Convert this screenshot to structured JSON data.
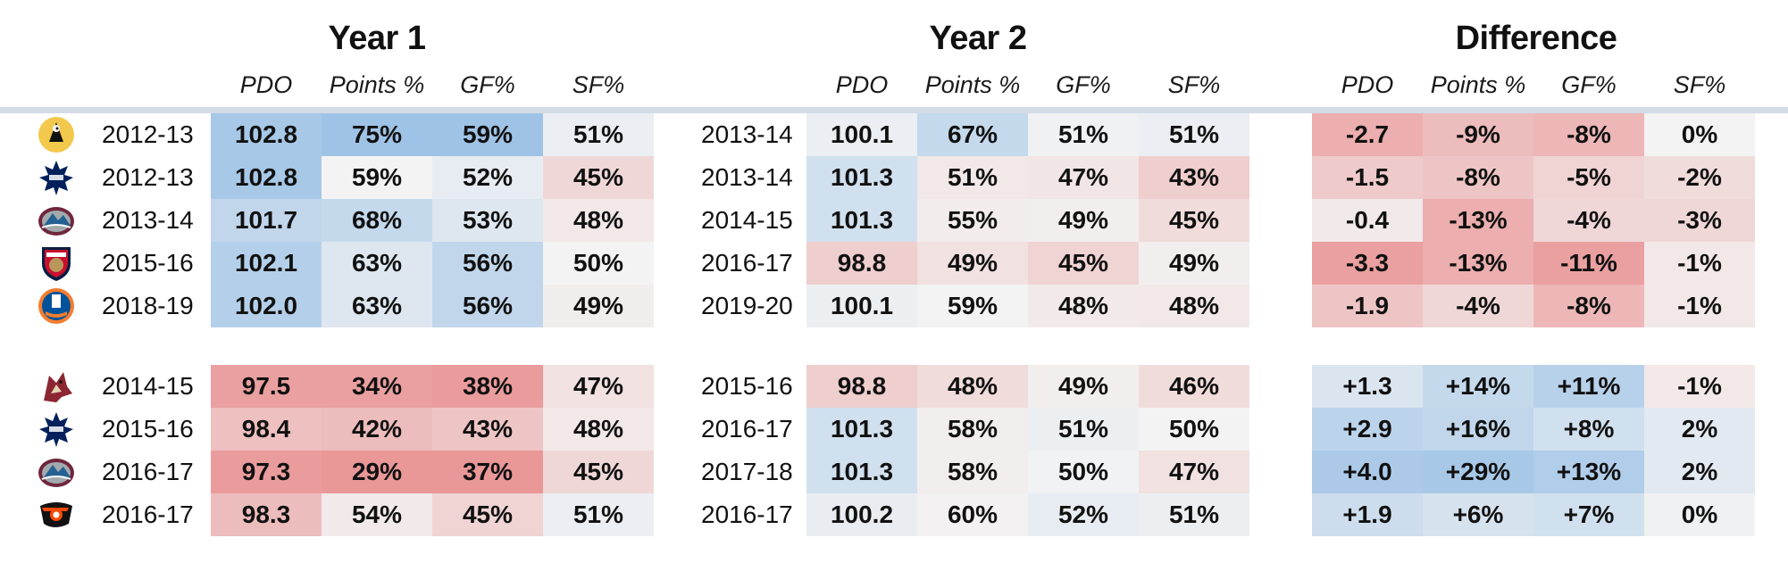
{
  "headers": {
    "year1": "Year 1",
    "year2": "Year 2",
    "difference": "Difference",
    "columns": [
      "PDO",
      "Points %",
      "GF%",
      "SF%"
    ]
  },
  "colors": {
    "positive": "#9fc3e6",
    "negative": "#e99797",
    "neutral": "#f3f3f3",
    "divider": "#d3dbe7"
  },
  "chart_data": {
    "type": "table",
    "groups": [
      "Year 1",
      "Year 2",
      "Difference"
    ],
    "columns": [
      "PDO",
      "Points %",
      "GF%",
      "SF%"
    ],
    "rows": [
      {
        "team_icon": "penguins-logo-icon",
        "y1_season": "2012-13",
        "y1": [
          "102.8",
          "75%",
          "59%",
          "51%"
        ],
        "y2_season": "2013-14",
        "y2": [
          "100.1",
          "67%",
          "51%",
          "51%"
        ],
        "diff": [
          "-2.7",
          "-9%",
          "-8%",
          "0%"
        ],
        "y1_t": [
          0.9,
          1.0,
          1.0,
          0.1
        ],
        "y2_t": [
          0.1,
          0.55,
          0.05,
          0.1
        ],
        "diff_t": [
          -0.75,
          -0.6,
          -0.65,
          0.0
        ]
      },
      {
        "team_icon": "maple-leafs-logo-icon",
        "y1_season": "2012-13",
        "y1": [
          "102.8",
          "59%",
          "52%",
          "45%"
        ],
        "y2_season": "2013-14",
        "y2": [
          "101.3",
          "51%",
          "47%",
          "43%"
        ],
        "diff": [
          "-1.5",
          "-8%",
          "-5%",
          "-2%"
        ],
        "y1_t": [
          0.9,
          0.0,
          0.15,
          -0.3
        ],
        "y2_t": [
          0.4,
          -0.12,
          -0.15,
          -0.4
        ],
        "diff_t": [
          -0.45,
          -0.5,
          -0.35,
          -0.25
        ]
      },
      {
        "team_icon": "avalanche-logo-icon",
        "y1_season": "2013-14",
        "y1": [
          "101.7",
          "68%",
          "53%",
          "48%"
        ],
        "y2_season": "2014-15",
        "y2": [
          "101.3",
          "55%",
          "49%",
          "45%"
        ],
        "diff": [
          "-0.4",
          "-13%",
          "-4%",
          "-3%"
        ],
        "y1_t": [
          0.6,
          0.55,
          0.25,
          -0.12
        ],
        "y2_t": [
          0.4,
          -0.08,
          -0.05,
          -0.25
        ],
        "diff_t": [
          -0.1,
          -0.75,
          -0.3,
          -0.3
        ]
      },
      {
        "team_icon": "panthers-logo-icon",
        "y1_season": "2015-16",
        "y1": [
          "102.1",
          "63%",
          "56%",
          "50%"
        ],
        "y2_season": "2016-17",
        "y2": [
          "98.8",
          "49%",
          "45%",
          "49%"
        ],
        "diff": [
          "-3.3",
          "-13%",
          "-11%",
          "-1%"
        ],
        "y1_t": [
          0.75,
          0.25,
          0.6,
          0.0
        ],
        "y2_t": [
          -0.4,
          -0.2,
          -0.35,
          -0.05
        ],
        "diff_t": [
          -0.9,
          -0.75,
          -0.9,
          -0.12
        ]
      },
      {
        "team_icon": "islanders-logo-icon",
        "y1_season": "2018-19",
        "y1": [
          "102.0",
          "63%",
          "56%",
          "49%"
        ],
        "y2_season": "2019-20",
        "y2": [
          "100.1",
          "59%",
          "48%",
          "48%"
        ],
        "diff": [
          "-1.9",
          "-4%",
          "-8%",
          "-1%"
        ],
        "y1_t": [
          0.75,
          0.25,
          0.6,
          -0.06
        ],
        "y2_t": [
          0.08,
          0.0,
          -0.1,
          -0.12
        ],
        "diff_t": [
          -0.5,
          -0.3,
          -0.65,
          -0.12
        ]
      },
      {
        "team_icon": "coyotes-logo-icon",
        "y1_season": "2014-15",
        "y1": [
          "97.5",
          "34%",
          "38%",
          "47%"
        ],
        "y2_season": "2015-16",
        "y2": [
          "98.8",
          "48%",
          "49%",
          "46%"
        ],
        "diff": [
          "+1.3",
          "+14%",
          "+11%",
          "-1%"
        ],
        "y1_t": [
          -0.9,
          -0.9,
          -0.95,
          -0.2
        ],
        "y2_t": [
          -0.4,
          -0.25,
          -0.05,
          -0.25
        ],
        "diff_t": [
          0.3,
          0.55,
          0.7,
          -0.12
        ]
      },
      {
        "team_icon": "maple-leafs-logo-icon",
        "y1_season": "2015-16",
        "y1": [
          "98.4",
          "42%",
          "43%",
          "48%"
        ],
        "y2_season": "2016-17",
        "y2": [
          "101.3",
          "58%",
          "51%",
          "50%"
        ],
        "diff": [
          "+2.9",
          "+16%",
          "+8%",
          "2%"
        ],
        "y1_t": [
          -0.55,
          -0.6,
          -0.5,
          -0.12
        ],
        "y2_t": [
          0.4,
          -0.05,
          0.08,
          0.0
        ],
        "diff_t": [
          0.65,
          0.6,
          0.4,
          0.2
        ]
      },
      {
        "team_icon": "avalanche-logo-icon",
        "y1_season": "2016-17",
        "y1": [
          "97.3",
          "29%",
          "37%",
          "45%"
        ],
        "y2_season": "2017-18",
        "y2": [
          "101.3",
          "58%",
          "50%",
          "47%"
        ],
        "diff": [
          "+4.0",
          "+29%",
          "+13%",
          "2%"
        ],
        "y1_t": [
          -0.95,
          -1.0,
          -1.0,
          -0.3
        ],
        "y2_t": [
          0.4,
          -0.05,
          0.03,
          -0.2
        ],
        "diff_t": [
          0.85,
          0.9,
          0.8,
          0.2
        ]
      },
      {
        "team_icon": "flyers-logo-icon",
        "y1_season": "2016-17",
        "y1": [
          "98.3",
          "54%",
          "45%",
          "51%"
        ],
        "y2_season": "2016-17",
        "y2": [
          "100.2",
          "60%",
          "52%",
          "51%"
        ],
        "diff": [
          "+1.9",
          "+6%",
          "+7%",
          "0%"
        ],
        "y1_t": [
          -0.6,
          -0.1,
          -0.35,
          0.1
        ],
        "y2_t": [
          0.12,
          -0.02,
          0.15,
          0.08
        ],
        "diff_t": [
          0.45,
          0.35,
          0.4,
          0.05
        ]
      }
    ]
  }
}
